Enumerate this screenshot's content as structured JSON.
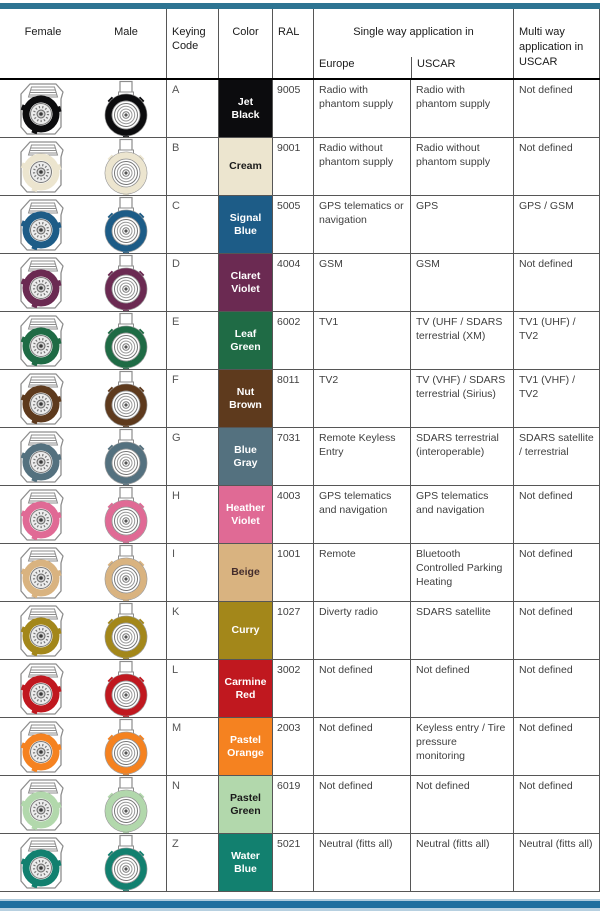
{
  "header": {
    "female": "Female",
    "male": "Male",
    "keying": "Keying Code",
    "color": "Color",
    "ral": "RAL",
    "single": "Single way application in",
    "europe": "Europe",
    "uscar": "USCAR",
    "multi": "Multi way application in USCAR"
  },
  "accent_colors": {
    "top_bar": "#2d7492",
    "bottom_bar": "#1f6f9f",
    "grid_line": "#565656"
  },
  "rows": [
    {
      "code": "A",
      "color": "Jet Black",
      "swatch": "#0c0c0e",
      "label_color": "#ffffff",
      "ral": "9005",
      "europe": "Radio with phantom supply",
      "uscar": "Radio with phantom supply",
      "multi": "Not defined"
    },
    {
      "code": "B",
      "color": "Cream",
      "swatch": "#ece5cf",
      "label_color": "#1a1a1a",
      "ral": "9001",
      "europe": "Radio without phantom supply",
      "uscar": "Radio without phantom supply",
      "multi": "Not defined"
    },
    {
      "code": "C",
      "color": "Signal Blue",
      "swatch": "#1d5c87",
      "label_color": "#ffffff",
      "ral": "5005",
      "europe": "GPS telematics or navigation",
      "uscar": "GPS",
      "multi": "GPS / GSM"
    },
    {
      "code": "D",
      "color": "Claret Violet",
      "swatch": "#6b2a52",
      "label_color": "#ffffff",
      "ral": "4004",
      "europe": "GSM",
      "uscar": "GSM",
      "multi": "Not defined"
    },
    {
      "code": "E",
      "color": "Leaf Green",
      "swatch": "#1f6b45",
      "label_color": "#ffffff",
      "ral": "6002",
      "europe": "TV1",
      "uscar": "TV (UHF / SDARS terrestrial (XM)",
      "multi": "TV1 (UHF) / TV2"
    },
    {
      "code": "F",
      "color": "Nut Brown",
      "swatch": "#5e3a1d",
      "label_color": "#ffffff",
      "ral": "8011",
      "europe": "TV2",
      "uscar": "TV (VHF) / SDARS terrestrial (Sirius)",
      "multi": "TV1 (VHF) / TV2"
    },
    {
      "code": "G",
      "color": "Blue Gray",
      "swatch": "#54717f",
      "label_color": "#ffffff",
      "ral": "7031",
      "europe": "Remote Keyless Entry",
      "uscar": "SDARS terrestrial (interoperable)",
      "multi": "SDARS satellite / terrestrial"
    },
    {
      "code": "H",
      "color": "Heather Violet",
      "swatch": "#e06a95",
      "label_color": "#ffffff",
      "ral": "4003",
      "europe": "GPS telematics and navigation",
      "uscar": "GPS telematics and navigation",
      "multi": "Not defined"
    },
    {
      "code": "I",
      "color": "Beige",
      "swatch": "#d9b380",
      "label_color": "#432c2c",
      "ral": "1001",
      "europe": "Remote",
      "uscar": "Bluetooth Controlled Parking Heating",
      "multi": "Not defined"
    },
    {
      "code": "K",
      "color": "Curry",
      "swatch": "#a3871a",
      "label_color": "#ffffff",
      "ral": "1027",
      "europe": "Diverty radio",
      "uscar": "SDARS satellite",
      "multi": "Not defined"
    },
    {
      "code": "L",
      "color": "Carmine Red",
      "swatch": "#c0181f",
      "label_color": "#ffffff",
      "ral": "3002",
      "europe": "Not defined",
      "uscar": "Not defined",
      "multi": "Not defined"
    },
    {
      "code": "M",
      "color": "Pastel Orange",
      "swatch": "#f58220",
      "label_color": "#ffffff",
      "ral": "2003",
      "europe": "Not defined",
      "uscar": "Keyless entry / Tire pressure monitoring",
      "multi": "Not defined"
    },
    {
      "code": "N",
      "color": "Pastel Green",
      "swatch": "#b2d8ac",
      "label_color": "#1a1a1a",
      "ral": "6019",
      "europe": "Not defined",
      "uscar": "Not defined",
      "multi": "Not defined"
    },
    {
      "code": "Z",
      "color": "Water Blue",
      "swatch": "#12806f",
      "label_color": "#ffffff",
      "ral": "5021",
      "europe": "Neutral (fitts all)",
      "uscar": "Neutral (fitts all)",
      "multi": "Neutral (fitts all)"
    }
  ]
}
